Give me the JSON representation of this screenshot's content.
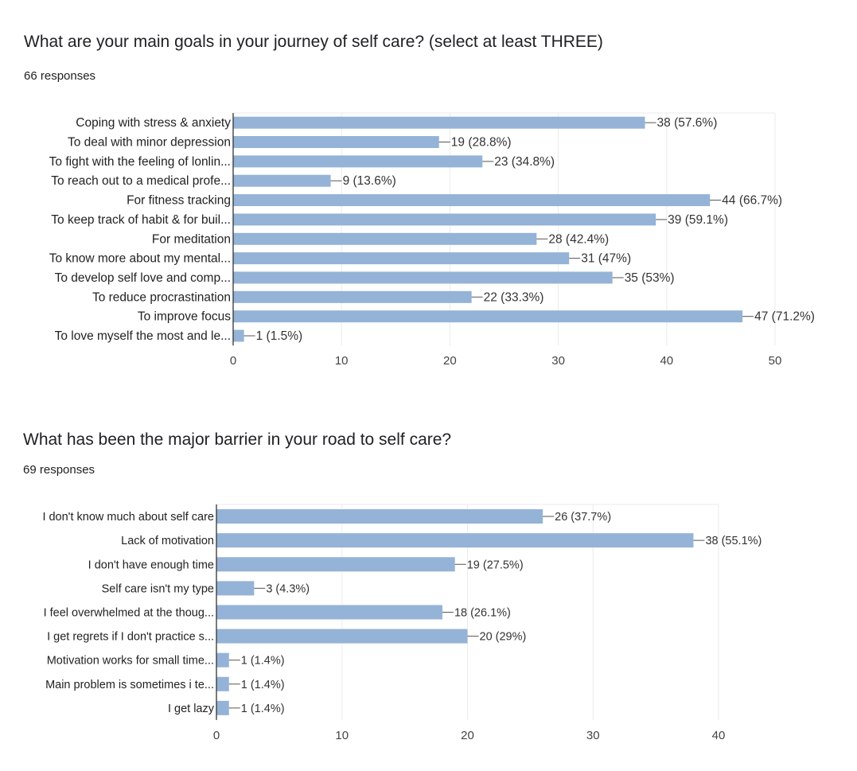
{
  "questions": [
    {
      "title": "What are your main goals in your journey of self care? (select at least THREE)",
      "responses": "66 responses"
    },
    {
      "title": "What has been the major barrier in your road to self care?",
      "responses": "69 responses"
    }
  ],
  "colors": {
    "bar": "#94b3d7",
    "grid": "#ebebeb",
    "axis": "#333333"
  },
  "chart_data": [
    {
      "type": "bar",
      "orientation": "horizontal",
      "categories": [
        "Coping with stress & anxiety",
        "To deal with minor depression",
        "To fight with the feeling of lonlin...",
        "To reach out to a medical profe...",
        "For fitness tracking",
        "To keep track of habit & for buil...",
        "For meditation",
        "To know more about my mental...",
        "To develop self love and comp...",
        "To reduce procrastination",
        "To improve focus",
        "To love myself the most and le..."
      ],
      "values": [
        38,
        19,
        23,
        9,
        44,
        39,
        28,
        31,
        35,
        22,
        47,
        1
      ],
      "data_labels": [
        "38 (57.6%)",
        "19 (28.8%)",
        "23 (34.8%)",
        "9 (13.6%)",
        "44 (66.7%)",
        "39 (59.1%)",
        "28 (42.4%)",
        "31 (47%)",
        "35 (53%)",
        "22 (33.3%)",
        "47 (71.2%)",
        "1 (1.5%)"
      ],
      "xlim": [
        0,
        50
      ],
      "ticks": [
        0,
        10,
        20,
        30,
        40,
        50
      ],
      "grid": true
    },
    {
      "type": "bar",
      "orientation": "horizontal",
      "categories": [
        "I don't know much about self care",
        "Lack of motivation",
        "I don't have enough time",
        "Self care isn't my type",
        "I feel overwhelmed at the thoug...",
        "I get regrets if I don't practice s...",
        "Motivation works for small time...",
        "Main problem is sometimes i te...",
        "I get lazy"
      ],
      "values": [
        26,
        38,
        19,
        3,
        18,
        20,
        1,
        1,
        1
      ],
      "data_labels": [
        "26 (37.7%)",
        "38 (55.1%)",
        "19 (27.5%)",
        "3 (4.3%)",
        "18 (26.1%)",
        "20 (29%)",
        "1 (1.4%)",
        "1 (1.4%)",
        "1 (1.4%)"
      ],
      "xlim": [
        0,
        40
      ],
      "ticks": [
        0,
        10,
        20,
        30,
        40
      ],
      "grid": true
    }
  ]
}
